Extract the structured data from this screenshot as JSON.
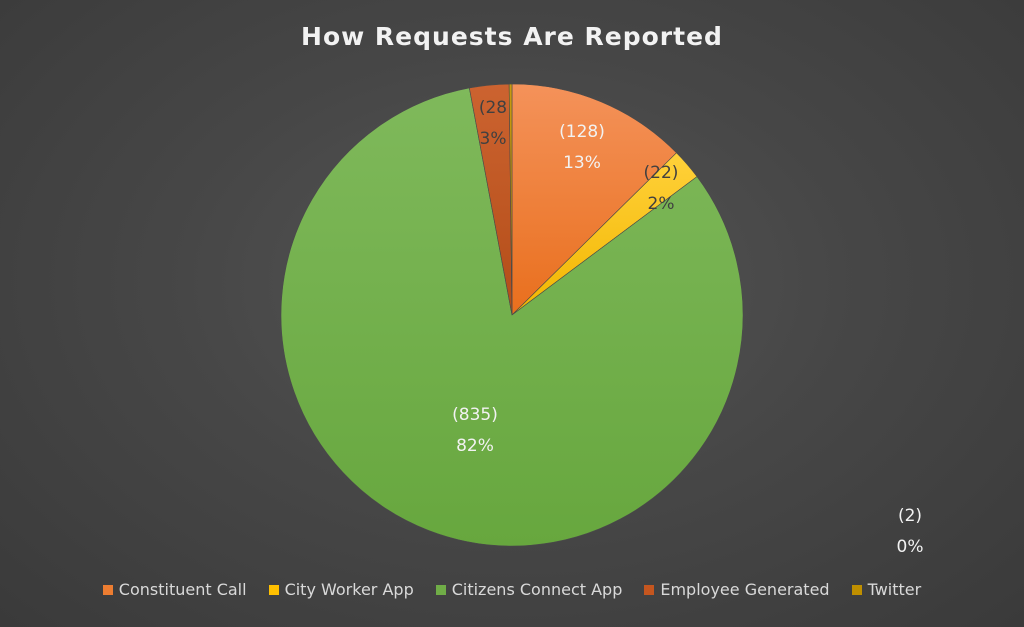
{
  "chart_data": {
    "type": "pie",
    "title": "How Requests Are Reported",
    "categories": [
      "Constituent Call",
      "City Worker App",
      "Citizens Connect App",
      "Employee Generated",
      "Twitter"
    ],
    "values": [
      128,
      22,
      835,
      28,
      2
    ],
    "counts_labels": [
      "(128)",
      "(22)",
      "(835)",
      "(28",
      "(2)"
    ],
    "percent_labels": [
      "13%",
      "2%",
      "82%",
      "3%",
      "0%"
    ],
    "colors": [
      "#ed7d31",
      "#ffc000",
      "#70ad47",
      "#c5561f",
      "#bf8f00"
    ],
    "label_colors": [
      "#f2f2f2",
      "#404040",
      "#f2f2f2",
      "#404040",
      "#f2f2f2"
    ],
    "legend_position": "bottom"
  }
}
